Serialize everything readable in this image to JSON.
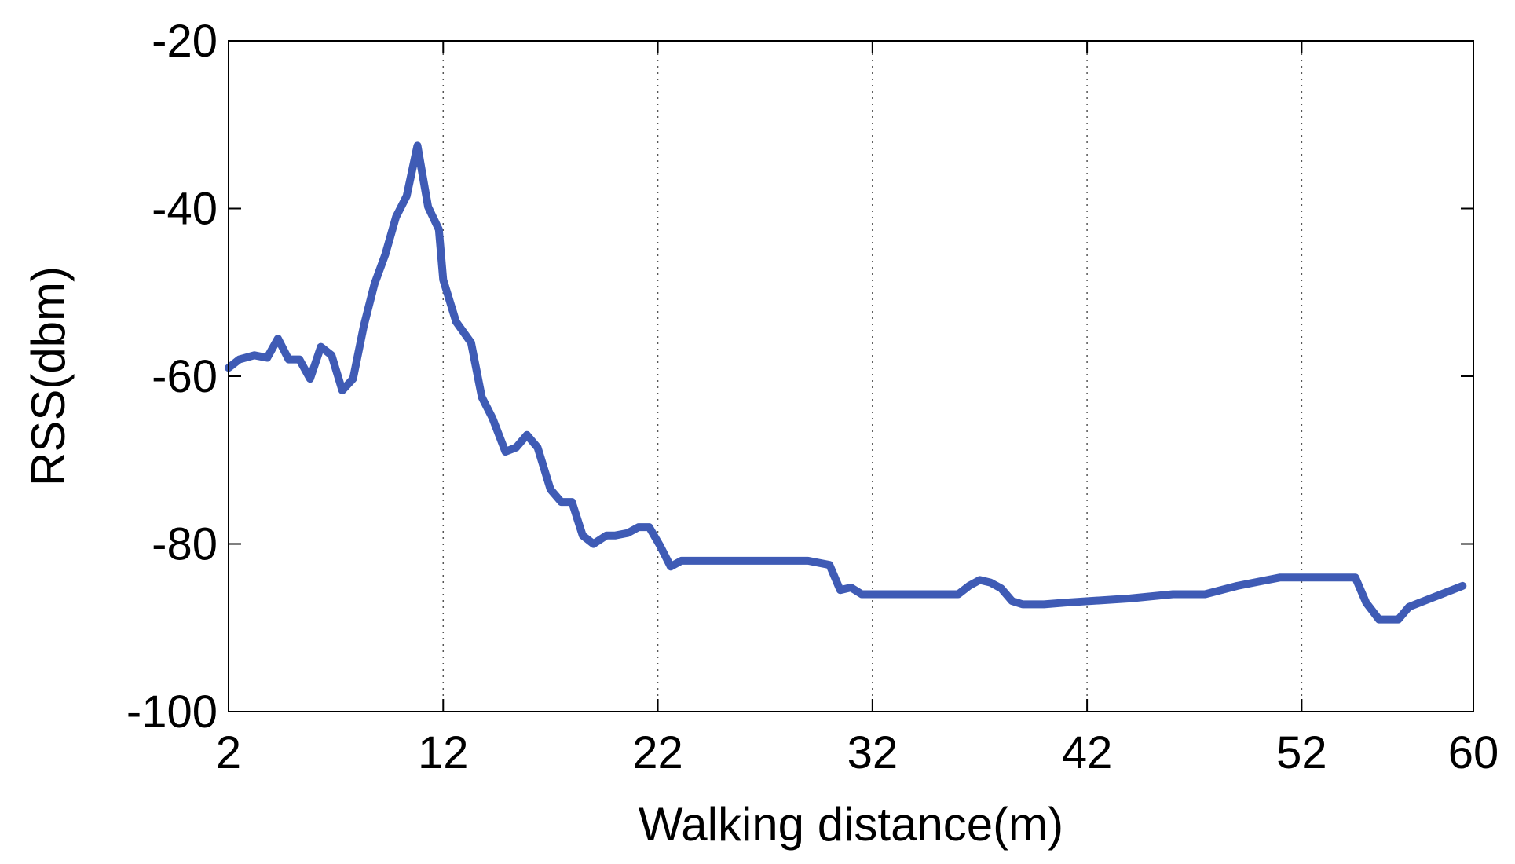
{
  "chart_data": {
    "type": "line",
    "title": "",
    "xlabel": "Walking distance(m)",
    "ylabel": "RSS(dbm)",
    "xlim": [
      2,
      60
    ],
    "ylim": [
      -100,
      -20
    ],
    "xticks": [
      2,
      12,
      22,
      32,
      42,
      52,
      60
    ],
    "yticks": [
      -20,
      -40,
      -60,
      -80,
      -100
    ],
    "xtick_labels": [
      "2",
      "12",
      "22",
      "32",
      "42",
      "52",
      "60"
    ],
    "ytick_labels": [
      "-20",
      "-40",
      "-60",
      "-80",
      "-100"
    ],
    "grid": "vertical dotted at x ticks",
    "line_color": "#3f5bb5",
    "series": [
      {
        "x": [
          2,
          2.5,
          3.2,
          3.8,
          4.3,
          4.8,
          5.3,
          5.8,
          6.3,
          6.8,
          7.3,
          7.8,
          8.3,
          8.8,
          9.3,
          9.8,
          10.3,
          10.8,
          11.3,
          11.8,
          12.0,
          12.6,
          13.3,
          13.8,
          14.3,
          14.9,
          15.4,
          15.9,
          16.4,
          17.0,
          17.5,
          18.0,
          18.5,
          19.0,
          19.6,
          20.0,
          20.6,
          21.1,
          21.6,
          22.1,
          22.6,
          23.1,
          23.6,
          24.1,
          24.6,
          25.1,
          25.6,
          26.1,
          26.6,
          27.1,
          29.0,
          30.0,
          30.5,
          31.0,
          31.5,
          32.0,
          32.5,
          35.5,
          36.0,
          36.5,
          37.0,
          37.5,
          38.0,
          38.5,
          39.0,
          39.5,
          40.0,
          41.0,
          44.0,
          46.0,
          47.5,
          49.0,
          50.0,
          51.0,
          52.5,
          53.0,
          54.5,
          55.0,
          55.6,
          56.5,
          57.0,
          59.5
        ],
        "y": [
          -59,
          -58,
          -57.5,
          -57.8,
          -55.5,
          -58,
          -58,
          -60.3,
          -56.5,
          -57.5,
          -61.7,
          -60.3,
          -54,
          -49,
          -45.5,
          -41,
          -38.5,
          -32.5,
          -39.8,
          -42.5,
          -48.5,
          -53.5,
          -56,
          -62.5,
          -65,
          -69,
          -68.5,
          -67,
          -68.5,
          -73.5,
          -75,
          -75,
          -79,
          -80,
          -79,
          -79,
          -78.7,
          -78,
          -78,
          -80.2,
          -82.7,
          -82,
          -82,
          -82,
          -82,
          -82,
          -82,
          -82,
          -82,
          -82,
          -82,
          -82.5,
          -85.5,
          -85.2,
          -86,
          -86,
          -86,
          -86,
          -86,
          -85,
          -84.3,
          -84.6,
          -85.3,
          -86.8,
          -87.2,
          -87.2,
          -87.2,
          -87,
          -86.5,
          -86,
          -86,
          -85,
          -84.5,
          -84,
          -84,
          -84,
          -84,
          -87,
          -89,
          -89,
          -87.5,
          -85
        ]
      }
    ]
  }
}
